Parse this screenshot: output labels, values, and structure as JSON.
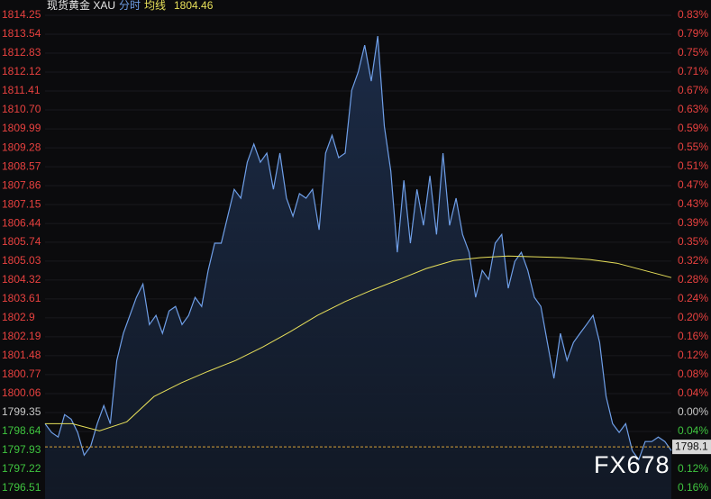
{
  "chart_data": {
    "type": "line",
    "title": "现货黄金 XAU",
    "avg_value": 1804.46,
    "watermark": "FX678",
    "grid": true,
    "up_color": "#e8413f",
    "down_color": "#3fc43f",
    "flat_color": "#c8c8c8",
    "ylim": [
      1796.51,
      1814.25
    ],
    "yticks": [
      1814.25,
      1813.54,
      1812.83,
      1812.12,
      1811.41,
      {
        "value": 1810.7,
        "label": "1810.70"
      },
      1809.99,
      1809.28,
      1808.57,
      1807.86,
      1807.15,
      1806.44,
      1805.74,
      1805.03,
      1804.32,
      1803.61,
      1802.9,
      1802.19,
      1801.48,
      1800.77,
      1800.06,
      1799.35,
      1798.64,
      1797.93,
      1797.22,
      1796.51
    ],
    "y2lim": [
      -0.1578,
      0.8286
    ],
    "y2ticks": [
      {
        "value": 0.8286,
        "label": "0.83%"
      },
      {
        "value": 0.7892,
        "label": "0.79%"
      },
      {
        "value": 0.7497,
        "label": "0.75%"
      },
      {
        "value": 0.7102,
        "label": "0.71%"
      },
      {
        "value": 0.6708,
        "label": "0.67%"
      },
      {
        "value": 0.6313,
        "label": "0.63%"
      },
      {
        "value": 0.5919,
        "label": "0.59%"
      },
      {
        "value": 0.5524,
        "label": "0.55%"
      },
      {
        "value": 0.513,
        "label": "0.51%"
      },
      {
        "value": 0.4735,
        "label": "0.47%"
      },
      {
        "value": 0.434,
        "label": "0.43%"
      },
      {
        "value": 0.3946,
        "label": "0.39%"
      },
      {
        "value": 0.3551,
        "label": "0.35%"
      },
      {
        "value": 0.3157,
        "label": "0.32%"
      },
      {
        "value": 0.2762,
        "label": "0.28%"
      },
      {
        "value": 0.2368,
        "label": "0.24%"
      },
      {
        "value": 0.1973,
        "label": "0.20%"
      },
      {
        "value": 0.1578,
        "label": "0.16%"
      },
      {
        "value": 0.1184,
        "label": "0.12%"
      },
      {
        "value": 0.0789,
        "label": "0.08%"
      },
      {
        "value": 0.0395,
        "label": "0.04%"
      },
      {
        "value": 0,
        "label": "0.00%"
      },
      {
        "value": -0.0395,
        "label": "0.04%"
      },
      {
        "value": -0.0789,
        "label": "0.08%"
      },
      {
        "value": -0.1184,
        "label": "0.12%"
      },
      {
        "value": -0.1578,
        "label": "0.16%"
      }
    ],
    "last_price": {
      "value": 1798.06,
      "label": "1798.1"
    },
    "series": [
      {
        "name": "分时",
        "color": "#6f9fe8",
        "values": [
          1798.93,
          1798.6,
          1798.43,
          1799.27,
          1799.1,
          1798.6,
          1797.75,
          1798.09,
          1798.93,
          1799.61,
          1798.93,
          1801.3,
          1802.32,
          1802.99,
          1803.67,
          1804.17,
          1802.65,
          1802.99,
          1802.32,
          1803.16,
          1803.33,
          1802.65,
          1802.99,
          1803.67,
          1803.33,
          1804.68,
          1805.7,
          1805.7,
          1806.71,
          1807.72,
          1807.39,
          1808.74,
          1809.42,
          1808.74,
          1809.08,
          1807.72,
          1809.08,
          1807.39,
          1806.71,
          1807.56,
          1807.39,
          1807.72,
          1806.2,
          1809.08,
          1809.75,
          1808.91,
          1809.08,
          1811.44,
          1812.12,
          1813.13,
          1811.78,
          1813.47,
          1810.09,
          1808.4,
          1805.36,
          1808.06,
          1805.7,
          1807.72,
          1806.37,
          1808.23,
          1806.03,
          1809.08,
          1806.37,
          1807.39,
          1806.03,
          1805.36,
          1803.67,
          1804.68,
          1804.34,
          1805.7,
          1806.03,
          1804.01,
          1805.02,
          1805.36,
          1804.68,
          1803.67,
          1803.33,
          1801.98,
          1800.63,
          1802.32,
          1801.3,
          1801.98,
          1802.32,
          1802.65,
          1802.99,
          1801.98,
          1799.95,
          1798.93,
          1798.6,
          1798.93,
          1797.92,
          1797.58,
          1798.26,
          1798.26,
          1798.43,
          1798.26,
          1797.92
        ]
      },
      {
        "name": "均线",
        "color": "#e8e05a",
        "values": [
          1798.93,
          1798.93,
          1798.66,
          1799.0,
          1799.95,
          1800.46,
          1800.9,
          1801.3,
          1801.81,
          1802.38,
          1802.99,
          1803.5,
          1803.94,
          1804.34,
          1804.75,
          1805.05,
          1805.16,
          1805.22,
          1805.19,
          1805.16,
          1805.09,
          1804.95,
          1804.68,
          1804.41
        ]
      }
    ]
  }
}
